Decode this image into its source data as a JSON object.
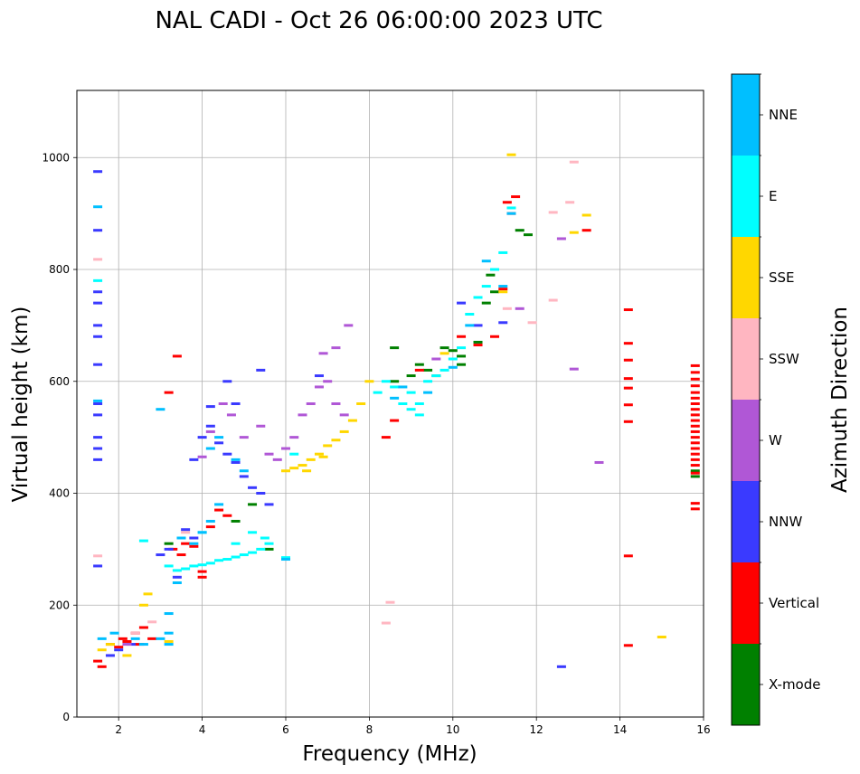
{
  "chart_data": {
    "type": "scatter",
    "title": "NAL CADI - Oct 26 06:00:00 2023 UTC",
    "xlabel": "Frequency (MHz)",
    "ylabel": "Virtual height (km)",
    "xlim": [
      1.0,
      16.0
    ],
    "ylim": [
      0,
      1120
    ],
    "xticks": [
      2,
      4,
      6,
      8,
      10,
      12,
      14,
      16
    ],
    "yticks": [
      0,
      200,
      400,
      600,
      800,
      1000
    ],
    "grid": true,
    "colorbar": {
      "label": "Azimuth Direction",
      "categories": [
        {
          "name": "X-mode",
          "color": "#008000"
        },
        {
          "name": "Vertical",
          "color": "#ff0000"
        },
        {
          "name": "NNW",
          "color": "#3a3aff"
        },
        {
          "name": "W",
          "color": "#b057d6"
        },
        {
          "name": "SSW",
          "color": "#ffb6c1"
        },
        {
          "name": "SSE",
          "color": "#ffd700"
        },
        {
          "name": "E",
          "color": "#00ffff"
        },
        {
          "name": "NNE",
          "color": "#00bfff"
        }
      ]
    },
    "series": [
      {
        "name": "X-mode",
        "points": [
          [
            3.2,
            310
          ],
          [
            5.6,
            300
          ],
          [
            8.6,
            660
          ],
          [
            8.6,
            600
          ],
          [
            9.0,
            610
          ],
          [
            9.2,
            630
          ],
          [
            9.4,
            620
          ],
          [
            9.6,
            610
          ],
          [
            9.8,
            660
          ],
          [
            10.0,
            655
          ],
          [
            10.2,
            645
          ],
          [
            10.2,
            630
          ],
          [
            10.6,
            670
          ],
          [
            10.8,
            740
          ],
          [
            10.9,
            790
          ],
          [
            11.0,
            760
          ],
          [
            11.6,
            870
          ],
          [
            11.8,
            862
          ],
          [
            15.8,
            440
          ],
          [
            15.8,
            430
          ],
          [
            4.8,
            350
          ],
          [
            5.2,
            380
          ]
        ]
      },
      {
        "name": "Vertical",
        "points": [
          [
            1.5,
            100
          ],
          [
            1.6,
            90
          ],
          [
            1.8,
            130
          ],
          [
            2.0,
            125
          ],
          [
            2.1,
            140
          ],
          [
            2.2,
            135
          ],
          [
            2.4,
            150
          ],
          [
            2.5,
            130
          ],
          [
            2.6,
            160
          ],
          [
            2.8,
            140
          ],
          [
            3.3,
            300
          ],
          [
            3.5,
            290
          ],
          [
            3.6,
            310
          ],
          [
            3.8,
            305
          ],
          [
            4.0,
            260
          ],
          [
            4.0,
            250
          ],
          [
            4.2,
            340
          ],
          [
            4.4,
            370
          ],
          [
            4.6,
            360
          ],
          [
            3.4,
            645
          ],
          [
            3.2,
            580
          ],
          [
            8.4,
            500
          ],
          [
            8.6,
            530
          ],
          [
            9.2,
            620
          ],
          [
            10.2,
            680
          ],
          [
            10.6,
            665
          ],
          [
            11.0,
            680
          ],
          [
            11.2,
            765
          ],
          [
            11.4,
            900
          ],
          [
            11.5,
            930
          ],
          [
            11.3,
            920
          ],
          [
            13.2,
            870
          ],
          [
            14.2,
            728
          ],
          [
            14.2,
            668
          ],
          [
            14.2,
            638
          ],
          [
            14.2,
            605
          ],
          [
            14.2,
            588
          ],
          [
            14.2,
            558
          ],
          [
            14.2,
            528
          ],
          [
            14.2,
            288
          ],
          [
            14.2,
            128
          ],
          [
            15.8,
            628
          ],
          [
            15.8,
            616
          ],
          [
            15.8,
            604
          ],
          [
            15.8,
            592
          ],
          [
            15.8,
            580
          ],
          [
            15.8,
            570
          ],
          [
            15.8,
            560
          ],
          [
            15.8,
            550
          ],
          [
            15.8,
            540
          ],
          [
            15.8,
            530
          ],
          [
            15.8,
            520
          ],
          [
            15.8,
            510
          ],
          [
            15.8,
            500
          ],
          [
            15.8,
            490
          ],
          [
            15.8,
            480
          ],
          [
            15.8,
            470
          ],
          [
            15.8,
            460
          ],
          [
            15.8,
            450
          ],
          [
            15.8,
            436
          ],
          [
            15.8,
            382
          ],
          [
            15.8,
            372
          ]
        ]
      },
      {
        "name": "NNW",
        "points": [
          [
            1.5,
            975
          ],
          [
            1.5,
            870
          ],
          [
            1.5,
            760
          ],
          [
            1.5,
            740
          ],
          [
            1.5,
            700
          ],
          [
            1.5,
            680
          ],
          [
            1.5,
            630
          ],
          [
            1.5,
            560
          ],
          [
            1.5,
            540
          ],
          [
            1.5,
            500
          ],
          [
            1.5,
            480
          ],
          [
            1.5,
            460
          ],
          [
            1.5,
            270
          ],
          [
            1.8,
            110
          ],
          [
            2.0,
            120
          ],
          [
            2.3,
            130
          ],
          [
            3.0,
            290
          ],
          [
            3.2,
            300
          ],
          [
            3.4,
            250
          ],
          [
            3.6,
            335
          ],
          [
            3.8,
            320
          ],
          [
            4.0,
            500
          ],
          [
            4.2,
            520
          ],
          [
            4.4,
            490
          ],
          [
            4.6,
            470
          ],
          [
            4.8,
            455
          ],
          [
            5.0,
            430
          ],
          [
            5.2,
            410
          ],
          [
            5.4,
            400
          ],
          [
            5.6,
            380
          ],
          [
            4.6,
            600
          ],
          [
            5.4,
            620
          ],
          [
            6.8,
            610
          ],
          [
            10.2,
            740
          ],
          [
            10.6,
            700
          ],
          [
            11.2,
            705
          ],
          [
            12.6,
            90
          ],
          [
            4.2,
            555
          ],
          [
            4.8,
            560
          ],
          [
            3.8,
            460
          ]
        ]
      },
      {
        "name": "W",
        "points": [
          [
            2.2,
            130
          ],
          [
            4.0,
            465
          ],
          [
            4.2,
            510
          ],
          [
            4.5,
            560
          ],
          [
            4.7,
            540
          ],
          [
            5.0,
            500
          ],
          [
            5.4,
            520
          ],
          [
            5.6,
            470
          ],
          [
            5.8,
            460
          ],
          [
            6.0,
            480
          ],
          [
            6.2,
            500
          ],
          [
            6.4,
            540
          ],
          [
            6.6,
            560
          ],
          [
            6.8,
            590
          ],
          [
            7.0,
            600
          ],
          [
            7.2,
            560
          ],
          [
            7.4,
            540
          ],
          [
            6.9,
            650
          ],
          [
            7.2,
            660
          ],
          [
            7.5,
            700
          ],
          [
            12.6,
            855
          ],
          [
            12.9,
            622
          ],
          [
            13.5,
            455
          ],
          [
            11.6,
            730
          ],
          [
            9.6,
            640
          ]
        ]
      },
      {
        "name": "SSW",
        "points": [
          [
            1.5,
            818
          ],
          [
            1.5,
            288
          ],
          [
            2.4,
            150
          ],
          [
            2.8,
            170
          ],
          [
            8.4,
            168
          ],
          [
            8.5,
            205
          ],
          [
            12.4,
            745
          ],
          [
            12.4,
            902
          ],
          [
            12.8,
            920
          ],
          [
            12.9,
            992
          ],
          [
            11.9,
            705
          ],
          [
            11.3,
            730
          ],
          [
            3.6,
            330
          ]
        ]
      },
      {
        "name": "SSE",
        "points": [
          [
            1.6,
            120
          ],
          [
            1.8,
            130
          ],
          [
            2.2,
            110
          ],
          [
            2.6,
            200
          ],
          [
            2.7,
            220
          ],
          [
            3.2,
            135
          ],
          [
            6.0,
            440
          ],
          [
            6.2,
            445
          ],
          [
            6.4,
            450
          ],
          [
            6.6,
            460
          ],
          [
            6.8,
            470
          ],
          [
            7.0,
            485
          ],
          [
            7.2,
            495
          ],
          [
            7.4,
            510
          ],
          [
            7.6,
            530
          ],
          [
            7.8,
            560
          ],
          [
            8.0,
            600
          ],
          [
            9.8,
            650
          ],
          [
            11.2,
            760
          ],
          [
            13.2,
            897
          ],
          [
            12.9,
            866
          ],
          [
            15.0,
            143
          ],
          [
            11.4,
            1005
          ],
          [
            6.5,
            440
          ],
          [
            6.9,
            465
          ]
        ]
      },
      {
        "name": "E",
        "points": [
          [
            1.5,
            780
          ],
          [
            3.2,
            270
          ],
          [
            3.4,
            262
          ],
          [
            3.6,
            265
          ],
          [
            3.8,
            270
          ],
          [
            4.0,
            272
          ],
          [
            4.2,
            275
          ],
          [
            4.4,
            280
          ],
          [
            4.6,
            282
          ],
          [
            4.8,
            286
          ],
          [
            5.0,
            290
          ],
          [
            5.2,
            294
          ],
          [
            5.4,
            300
          ],
          [
            5.6,
            310
          ],
          [
            6.0,
            285
          ],
          [
            4.0,
            330
          ],
          [
            4.8,
            310
          ],
          [
            5.2,
            330
          ],
          [
            5.5,
            320
          ],
          [
            8.2,
            580
          ],
          [
            8.4,
            600
          ],
          [
            8.6,
            590
          ],
          [
            8.8,
            560
          ],
          [
            9.0,
            580
          ],
          [
            9.2,
            560
          ],
          [
            9.4,
            600
          ],
          [
            9.6,
            610
          ],
          [
            9.8,
            620
          ],
          [
            10.0,
            640
          ],
          [
            10.2,
            660
          ],
          [
            10.4,
            720
          ],
          [
            10.6,
            750
          ],
          [
            10.8,
            770
          ],
          [
            11.0,
            800
          ],
          [
            11.2,
            830
          ],
          [
            9.2,
            540
          ],
          [
            9.0,
            550
          ],
          [
            6.2,
            470
          ],
          [
            11.4,
            910
          ],
          [
            2.6,
            315
          ]
        ]
      },
      {
        "name": "NNE",
        "points": [
          [
            1.5,
            912
          ],
          [
            1.5,
            565
          ],
          [
            1.6,
            140
          ],
          [
            1.9,
            150
          ],
          [
            2.4,
            140
          ],
          [
            2.6,
            130
          ],
          [
            3.0,
            140
          ],
          [
            3.2,
            150
          ],
          [
            3.2,
            185
          ],
          [
            3.0,
            550
          ],
          [
            3.5,
            320
          ],
          [
            3.8,
            310
          ],
          [
            4.0,
            330
          ],
          [
            4.2,
            350
          ],
          [
            4.4,
            380
          ],
          [
            4.2,
            480
          ],
          [
            4.4,
            500
          ],
          [
            4.8,
            460
          ],
          [
            5.0,
            440
          ],
          [
            6.0,
            282
          ],
          [
            8.6,
            570
          ],
          [
            8.8,
            590
          ],
          [
            9.4,
            580
          ],
          [
            10.0,
            625
          ],
          [
            10.4,
            700
          ],
          [
            10.8,
            815
          ],
          [
            11.2,
            770
          ],
          [
            11.4,
            900
          ],
          [
            3.2,
            130
          ],
          [
            3.4,
            240
          ]
        ]
      }
    ]
  }
}
